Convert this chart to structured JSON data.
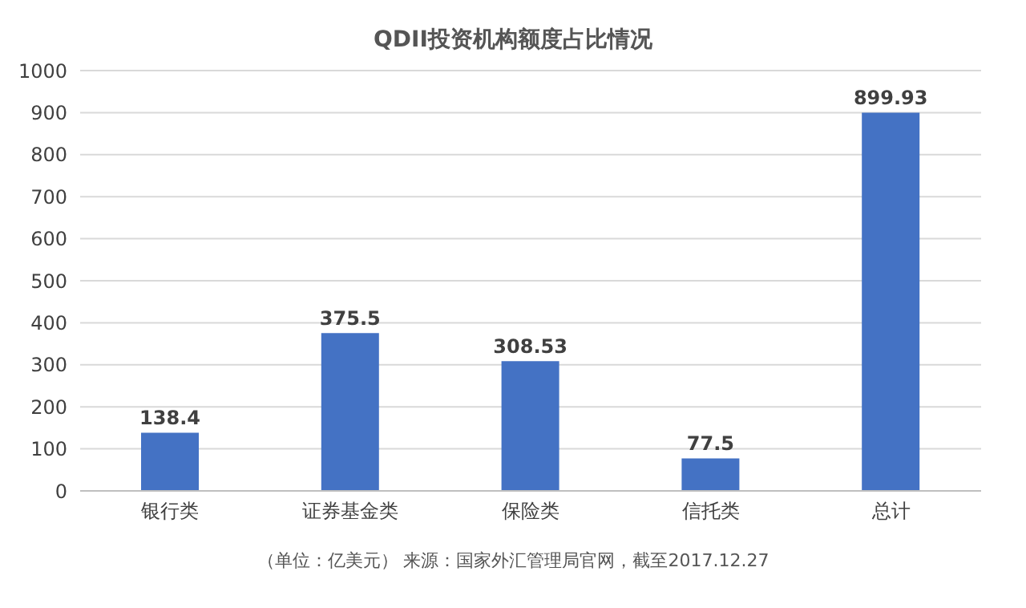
{
  "chart_data": {
    "type": "bar",
    "title": "QDII投资机构额度占比情况",
    "categories": [
      "银行类",
      "证券基金类",
      "保险类",
      "信托类",
      "总计"
    ],
    "values": [
      138.4,
      375.5,
      308.53,
      77.5,
      899.93
    ],
    "color": "#4472c4",
    "ylim": [
      0,
      1000
    ],
    "yticks": [
      0,
      100,
      200,
      300,
      400,
      500,
      600,
      700,
      800,
      900,
      1000
    ],
    "grid": "y",
    "data_labels": true,
    "annotations": [
      "（单位：亿美元） 来源：国家外汇管理局官网，截至2017.12.27"
    ]
  }
}
